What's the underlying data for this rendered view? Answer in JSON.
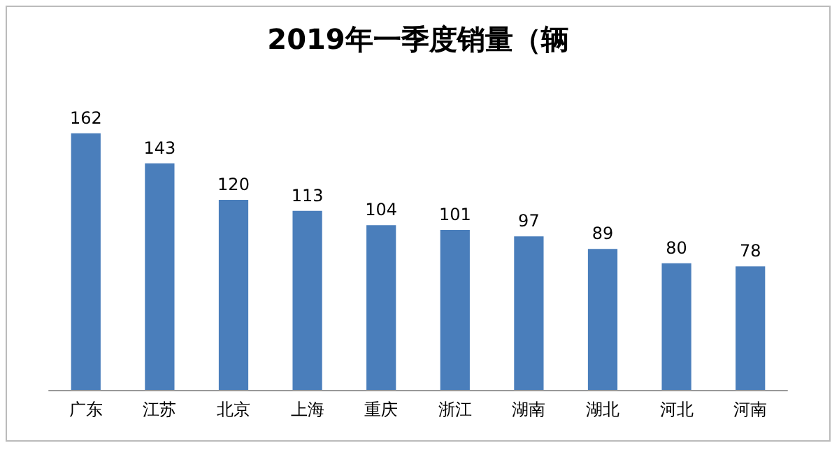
{
  "chart_data": {
    "type": "bar",
    "title": "2019年一季度销量（辆",
    "categories": [
      "广东",
      "江苏",
      "北京",
      "上海",
      "重庆",
      "浙江",
      "湖南",
      "湖北",
      "河北",
      "河南"
    ],
    "values": [
      162,
      143,
      120,
      113,
      104,
      101,
      97,
      89,
      80,
      78
    ],
    "color": "#4a7ebb",
    "data_labels": true,
    "tick_labels": "x"
  }
}
